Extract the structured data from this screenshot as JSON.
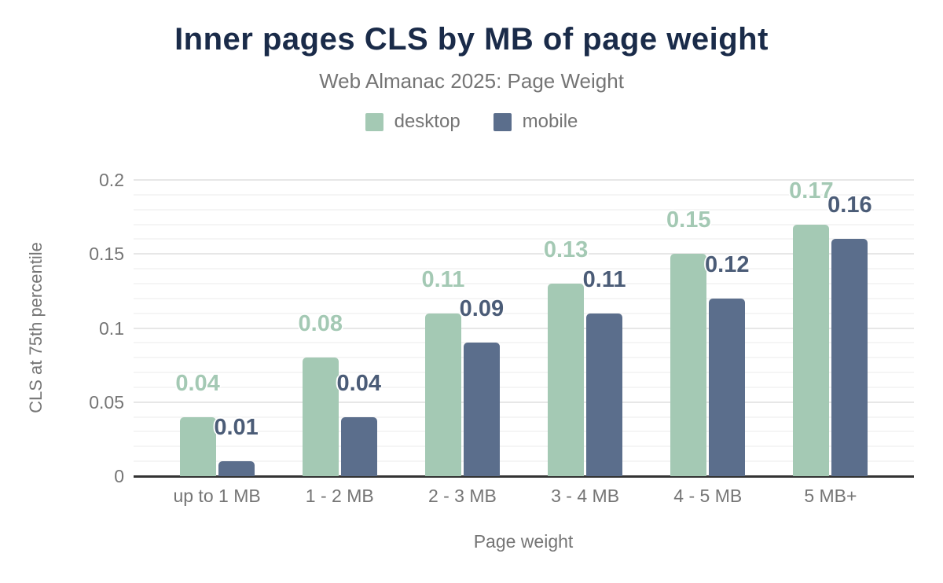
{
  "title": "Inner pages CLS by MB of page weight",
  "subtitle": "Web Almanac 2025: Page Weight",
  "colors": {
    "title": "#1a2b49",
    "muted_text": "#757575",
    "desktop": "#a4c9b4",
    "mobile": "#5b6e8c",
    "desktop_label": "#a4c9b4",
    "mobile_label": "#4b5c77",
    "axis_line": "#333333",
    "gridline_major": "#e7e7e7",
    "gridline_minor": "#f5f5f5"
  },
  "chart_data": {
    "type": "bar",
    "title": "Inner pages CLS by MB of page weight",
    "subtitle": "Web Almanac 2025: Page Weight",
    "categories": [
      "up to 1 MB",
      "1 - 2 MB",
      "2 - 3 MB",
      "3 - 4 MB",
      "4 - 5 MB",
      "5 MB+"
    ],
    "series": [
      {
        "name": "desktop",
        "color": "#a4c9b4",
        "label_color": "#a4c9b4",
        "values": [
          0.04,
          0.08,
          0.11,
          0.13,
          0.15,
          0.17
        ],
        "value_labels": [
          "0.04",
          "0.08",
          "0.11",
          "0.13",
          "0.15",
          "0.17"
        ]
      },
      {
        "name": "mobile",
        "color": "#5b6e8c",
        "label_color": "#4b5c77",
        "values": [
          0.01,
          0.04,
          0.09,
          0.11,
          0.12,
          0.16
        ],
        "value_labels": [
          "0.01",
          "0.04",
          "0.09",
          "0.11",
          "0.12",
          "0.16"
        ]
      }
    ],
    "xlabel": "Page weight",
    "ylabel": "CLS at 75th percentile",
    "ylim": [
      0,
      0.2
    ],
    "yticks": [
      {
        "value": 0,
        "label": "0"
      },
      {
        "value": 0.05,
        "label": "0.05"
      },
      {
        "value": 0.1,
        "label": "0.1"
      },
      {
        "value": 0.15,
        "label": "0.15"
      },
      {
        "value": 0.2,
        "label": "0.2"
      }
    ],
    "minor_grid_step": 0.01,
    "grid": true,
    "legend_position": "top",
    "legend": [
      "desktop",
      "mobile"
    ]
  }
}
